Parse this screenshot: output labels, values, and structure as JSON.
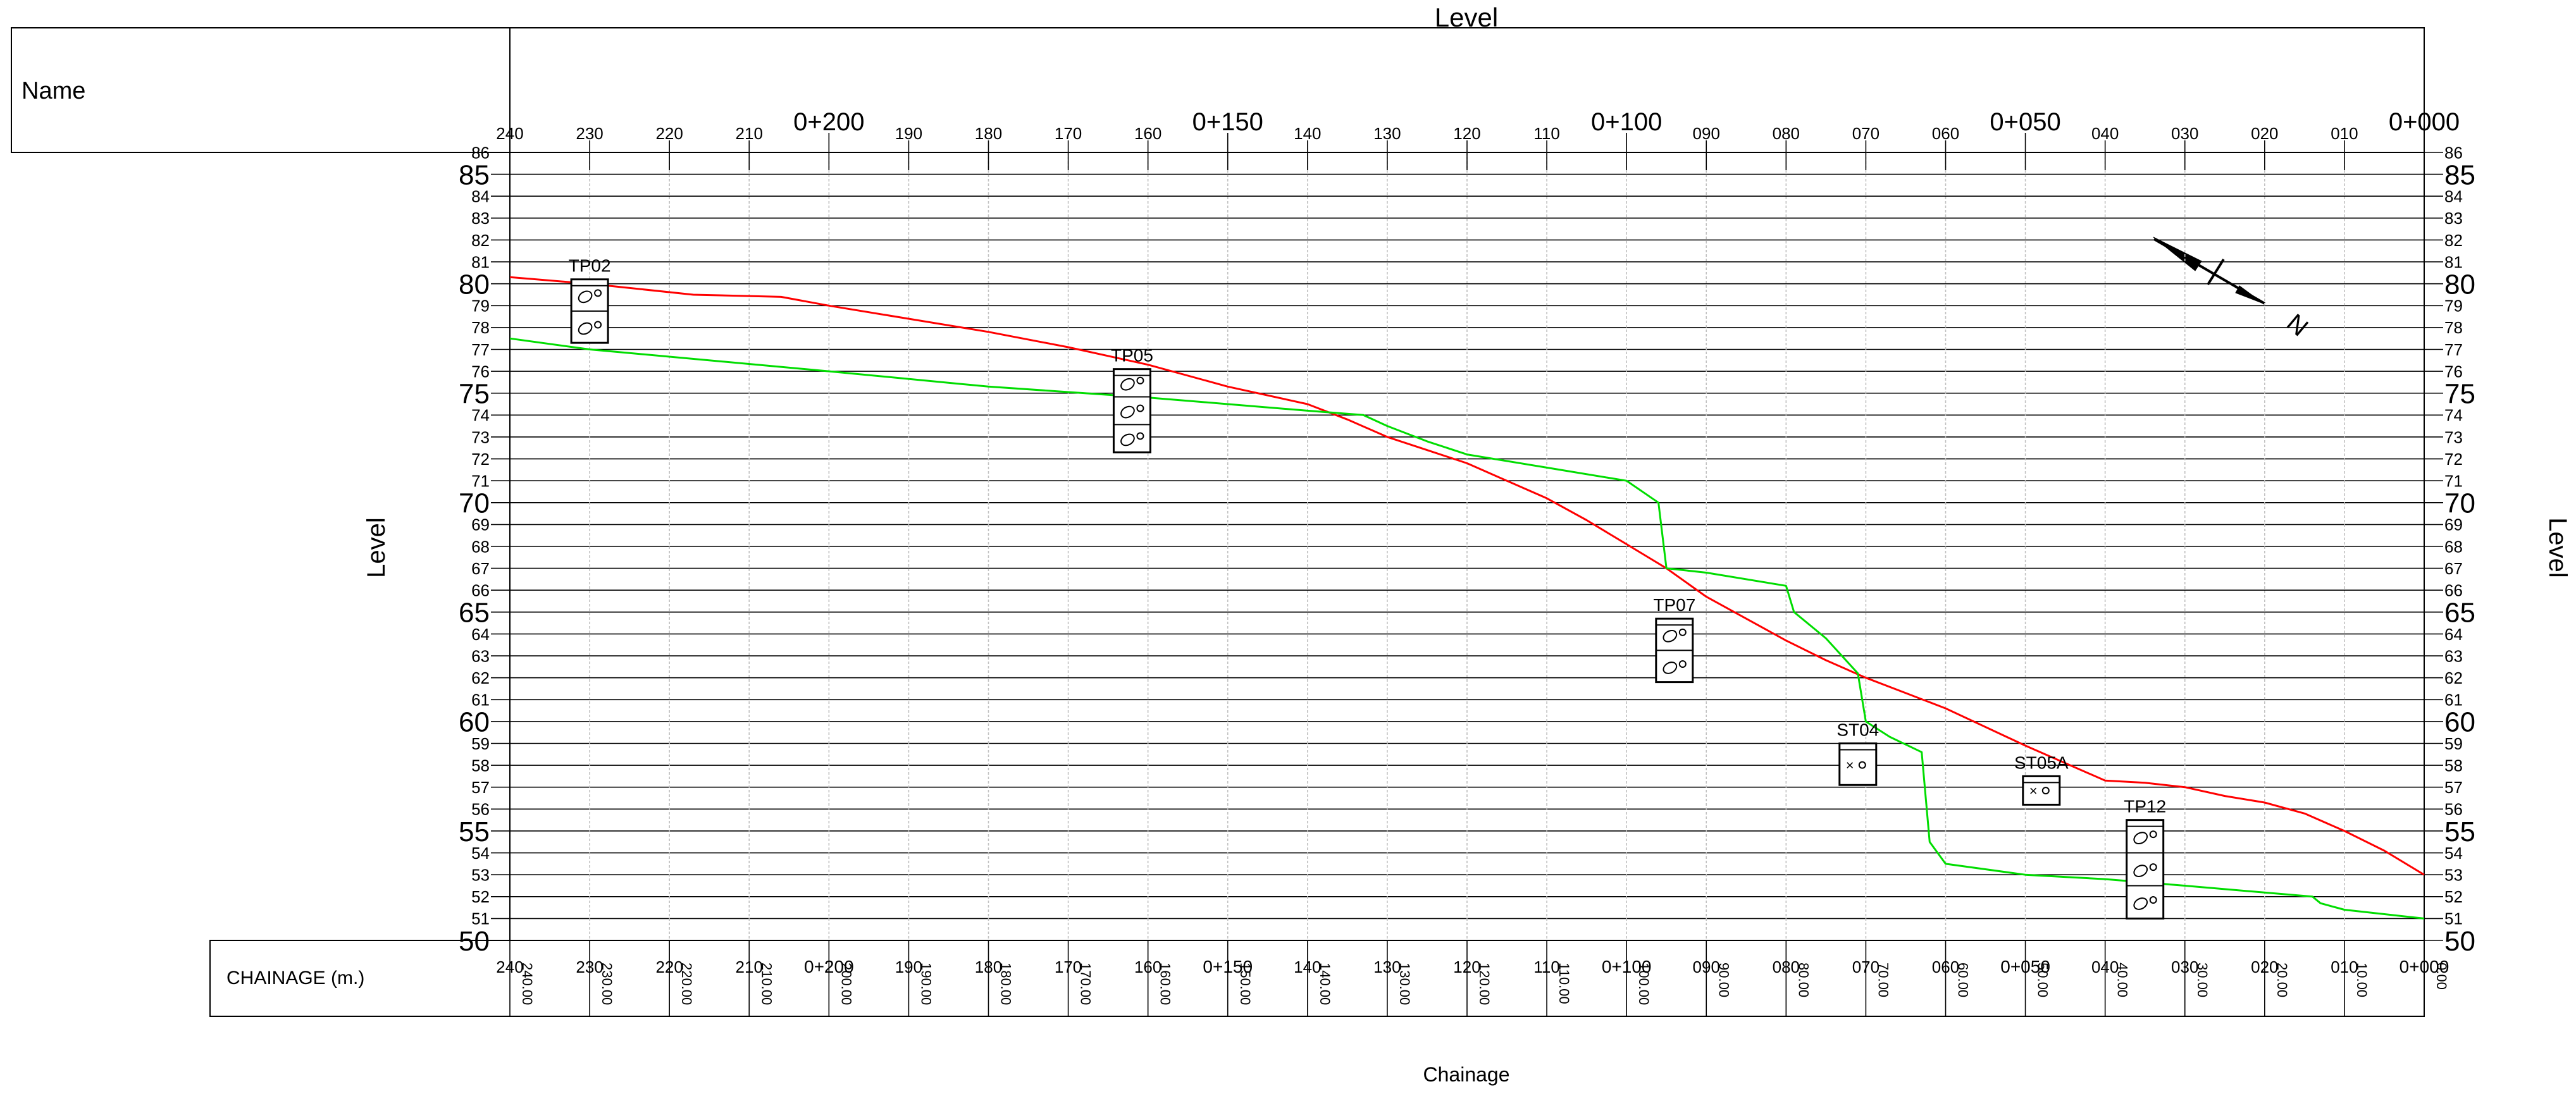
{
  "drawing": {
    "top_title": "Level",
    "name_label": "Name",
    "left_axis_title": "Level",
    "right_axis_title": "Level",
    "chainage_label": "CHAINAGE  (m.)",
    "bottom_title": "Chainage",
    "north_label": "N"
  },
  "colors": {
    "ground_line": "#ff0000",
    "design_line": "#00dd00",
    "grid": "#000000",
    "minor_grid": "#c0c0c0"
  },
  "chart_data": {
    "type": "line",
    "title": "Level",
    "xlabel": "Chainage",
    "ylabel": "Level",
    "x_reversed": true,
    "xlim": [
      0,
      240
    ],
    "ylim": [
      50,
      86
    ],
    "top_ticks": [
      "240",
      "230",
      "220",
      "210",
      "0+200",
      "190",
      "180",
      "170",
      "160",
      "0+150",
      "140",
      "130",
      "120",
      "110",
      "0+100",
      "090",
      "080",
      "070",
      "060",
      "0+050",
      "040",
      "030",
      "020",
      "010",
      "0+000"
    ],
    "bottom_values": [
      "240.00",
      "230.00",
      "220.00",
      "210.00",
      "200.00",
      "190.00",
      "180.00",
      "170.00",
      "160.00",
      "150.00",
      "140.00",
      "130.00",
      "120.00",
      "110.00",
      "100.00",
      "90.00",
      "80.00",
      "70.00",
      "60.00",
      "50.00",
      "40.00",
      "30.00",
      "20.00",
      "10.00",
      "0.00"
    ],
    "series": [
      {
        "color": "#ff0000",
        "x": [
          240,
          230,
          217,
          206,
          200,
          180,
          170,
          160,
          150,
          140,
          135,
          130,
          125,
          120,
          115,
          110,
          105,
          100,
          95,
          90,
          85,
          80,
          75,
          70,
          65,
          60,
          50,
          40,
          35,
          30,
          25,
          20,
          15,
          10,
          5,
          0
        ],
        "y": [
          80.3,
          80.0,
          79.5,
          79.4,
          79.0,
          77.8,
          77.1,
          76.3,
          75.3,
          74.5,
          73.8,
          73.0,
          72.4,
          71.8,
          71.0,
          70.2,
          69.2,
          68.1,
          67.0,
          65.7,
          64.7,
          63.7,
          62.8,
          62.0,
          61.3,
          60.6,
          58.9,
          57.3,
          57.2,
          57.0,
          56.6,
          56.3,
          55.8,
          55.0,
          54.1,
          53.0
        ]
      },
      {
        "color": "#00dd00",
        "x": [
          240,
          230,
          200,
          180,
          160,
          150,
          140,
          133,
          130,
          125,
          120,
          110,
          100,
          96,
          95,
          90,
          80,
          79,
          75,
          71,
          70,
          67,
          63,
          62,
          60,
          50,
          40,
          30,
          14,
          13,
          10,
          0
        ],
        "y": [
          77.5,
          77.0,
          76.0,
          75.3,
          74.8,
          74.5,
          74.2,
          74.0,
          73.5,
          72.8,
          72.2,
          71.6,
          71.0,
          70.0,
          67.0,
          66.8,
          66.2,
          65.0,
          63.8,
          62.2,
          60.0,
          59.3,
          58.6,
          54.5,
          53.5,
          53.0,
          52.8,
          52.5,
          52.0,
          51.7,
          51.4,
          51.0
        ]
      }
    ],
    "boreholes": [
      {
        "name": "TP02",
        "x": 230,
        "top": 80.2,
        "bottom": 77.3
      },
      {
        "name": "TP05",
        "x": 162,
        "top": 76.1,
        "bottom": 72.3
      },
      {
        "name": "TP07",
        "x": 94,
        "top": 64.7,
        "bottom": 61.8
      },
      {
        "name": "ST04",
        "x": 71,
        "top": 59.0,
        "bottom": 57.1
      },
      {
        "name": "ST05A",
        "x": 48,
        "top": 57.5,
        "bottom": 56.2
      },
      {
        "name": "TP12",
        "x": 35,
        "top": 55.5,
        "bottom": 51.0
      }
    ]
  }
}
